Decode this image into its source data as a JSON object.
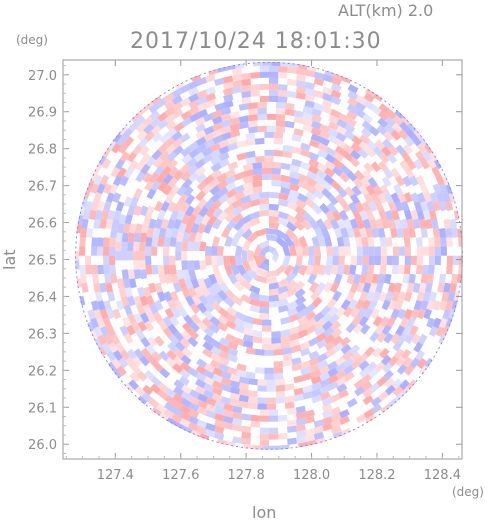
{
  "chart_data": {
    "type": "heatmap",
    "title": "2017/10/24 18:01:30",
    "altitude_label": "ALT(km) 2.0",
    "xlabel": "lon",
    "ylabel": "lat",
    "x_unit": "(deg)",
    "y_unit": "(deg)",
    "xlim": [
      127.24,
      128.46
    ],
    "ylim": [
      25.96,
      27.04
    ],
    "x_ticks": [
      127.4,
      127.6,
      127.8,
      128.0,
      128.2,
      128.4
    ],
    "x_tick_labels": [
      "127.4",
      "127.6",
      "127.8",
      "128.0",
      "128.2",
      "128.4"
    ],
    "y_ticks": [
      26.0,
      26.1,
      26.2,
      26.3,
      26.4,
      26.5,
      26.6,
      26.7,
      26.8,
      26.9,
      27.0
    ],
    "y_tick_labels": [
      "26.0",
      "26.1",
      "26.2",
      "26.3",
      "26.4",
      "26.5",
      "26.6",
      "26.7",
      "26.8",
      "26.9",
      "27.0"
    ],
    "radar_center": {
      "lon": 127.87,
      "lat": 26.51
    },
    "colormap": {
      "positive": "#ff9a9a",
      "negative": "#9aa0ff",
      "zero": "#ffffff"
    },
    "grid": false,
    "legend": "none"
  }
}
